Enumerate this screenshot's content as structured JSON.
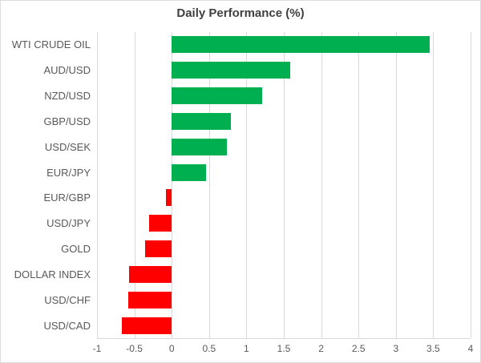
{
  "chart_data": {
    "type": "bar",
    "orientation": "horizontal",
    "title": "Daily Performance (%)",
    "categories": [
      "WTI CRUDE OIL",
      "AUD/USD",
      "NZD/USD",
      "GBP/USD",
      "USD/SEK",
      "EUR/JPY",
      "EUR/GBP",
      "USD/JPY",
      "GOLD",
      "DOLLAR INDEX",
      "USD/CHF",
      "USD/CAD"
    ],
    "values": [
      3.45,
      1.59,
      1.21,
      0.79,
      0.74,
      0.46,
      -0.08,
      -0.3,
      -0.36,
      -0.57,
      -0.58,
      -0.67
    ],
    "xlabel": "",
    "ylabel": "",
    "xlim": [
      -1,
      4
    ],
    "xticks": [
      -1,
      -0.5,
      0,
      0.5,
      1,
      1.5,
      2,
      2.5,
      3,
      3.5,
      4
    ],
    "xtick_labels": [
      "-1",
      "-0.5",
      "0",
      "0.5",
      "1",
      "1.5",
      "2",
      "2.5",
      "3",
      "3.5",
      "4"
    ],
    "grid": "vertical",
    "legend": "none",
    "colors": {
      "positive": "#00B050",
      "negative": "#FF0000",
      "gridline": "#D9D9D9",
      "title_text": "#404040",
      "axis_text": "#595959"
    }
  }
}
